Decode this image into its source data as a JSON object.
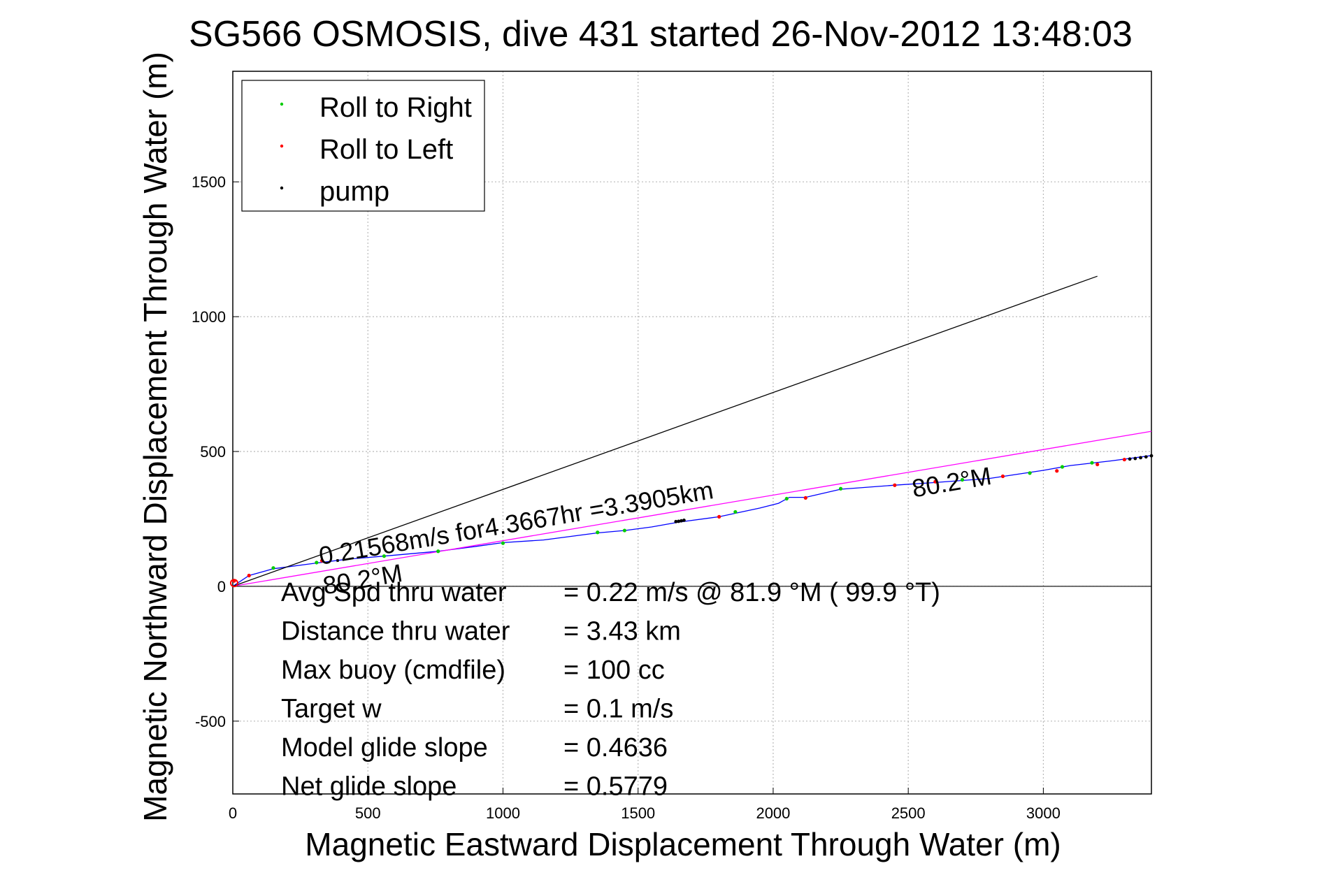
{
  "chart_data": {
    "type": "line",
    "title": "SG566 OSMOSIS, dive 431 started 26-Nov-2012 13:48:03",
    "xlabel": "Magnetic Eastward Displacement Through Water (m)",
    "ylabel": "Magnetic Northward Displacement Through Water (m)",
    "xlim": [
      0,
      3400
    ],
    "ylim": [
      -770,
      1910
    ],
    "xticks": [
      0,
      500,
      1000,
      1500,
      2000,
      2500,
      3000
    ],
    "yticks": [
      -500,
      0,
      500,
      1000,
      1500
    ],
    "grid": true,
    "legend_position": "top-left",
    "legend": [
      {
        "label": "Roll to Right",
        "color": "#00cc00"
      },
      {
        "label": "Roll to Left",
        "color": "#ff0000"
      },
      {
        "label": "pump",
        "color": "#000000"
      }
    ],
    "series": [
      {
        "color": "#0000ff",
        "x": [
          0,
          60,
          150,
          300,
          420,
          560,
          760,
          900,
          1000,
          1150,
          1350,
          1450,
          1550,
          1650,
          1800,
          1880,
          1950,
          2020,
          2060,
          2120,
          2250,
          2450,
          2600,
          2800,
          3000,
          3100,
          3250,
          3400
        ],
        "y": [
          0,
          40,
          65,
          85,
          100,
          112,
          130,
          148,
          162,
          172,
          198,
          207,
          220,
          238,
          258,
          275,
          290,
          308,
          330,
          330,
          360,
          375,
          385,
          400,
          430,
          448,
          465,
          485
        ]
      },
      {
        "color": "#ff00ff",
        "x": [
          0,
          3400
        ],
        "y": [
          0,
          575
        ]
      },
      {
        "color": "#000000",
        "x": [
          0,
          3200
        ],
        "y": [
          0,
          1150
        ]
      }
    ],
    "markers": {
      "roll_right": {
        "color": "#00cc00",
        "x": [
          150,
          310,
          560,
          760,
          1000,
          1350,
          1450,
          1860,
          2050,
          2250,
          2700,
          2950,
          3070,
          3180
        ],
        "y": [
          68,
          88,
          112,
          130,
          160,
          200,
          207,
          276,
          325,
          362,
          395,
          420,
          443,
          458
        ]
      },
      "roll_left": {
        "color": "#ff0000",
        "x": [
          5,
          60,
          330,
          1800,
          2120,
          2450,
          2600,
          2850,
          3050,
          3200,
          3300
        ],
        "y": [
          20,
          40,
          95,
          258,
          328,
          375,
          388,
          408,
          428,
          452,
          470
        ]
      },
      "pump": {
        "color": "#000000",
        "x": [
          1640,
          1650,
          1660,
          1670,
          3320,
          3340,
          3360,
          3380,
          3400
        ],
        "y": [
          240,
          241,
          243,
          245,
          472,
          474,
          477,
          480,
          484
        ]
      }
    },
    "annotations": [
      {
        "text": "0.21568m/s for4.3667hr =3.3905km",
        "x": 325,
        "y": 80
      },
      {
        "text": "80.2°M",
        "x": 2520,
        "y": 330
      },
      {
        "text": "80.2°M",
        "x": 340,
        "y": -30
      }
    ],
    "stats": [
      {
        "label": "Avg Spd thru water",
        "value": "=  0.22 m/s @  81.9 °M ( 99.9 °T)"
      },
      {
        "label": "Distance thru water",
        "value": "=  3.43 km"
      },
      {
        "label": "Max buoy (cmdfile)",
        "value": "= 100 cc"
      },
      {
        "label": "Target w",
        "value": "= 0.1 m/s"
      },
      {
        "label": "Model glide slope",
        "value": "= 0.4636"
      },
      {
        "label": "Net glide slope",
        "value": "= 0.5779"
      }
    ]
  }
}
